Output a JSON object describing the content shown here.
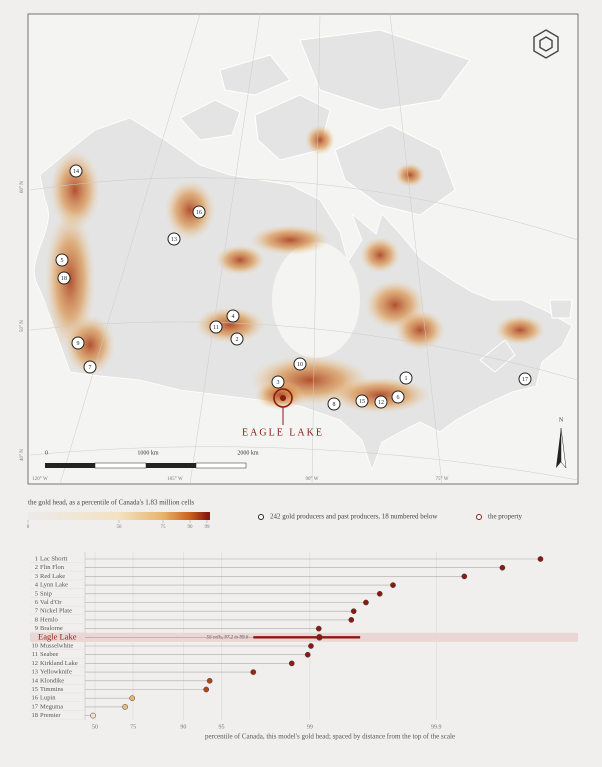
{
  "map": {
    "markers": [
      14,
      16,
      13,
      5,
      18,
      4,
      11,
      2,
      9,
      7,
      10,
      3,
      8,
      15,
      12,
      6,
      1,
      17
    ],
    "property_label": "EAGLE LAKE",
    "scale_labels": [
      "0",
      "1000 km",
      "2000 km"
    ],
    "north": "N",
    "lat_labels": [
      "60° N",
      "50° N",
      "40° N"
    ],
    "lon_labels": [
      "120° W",
      "105° W",
      "90° W",
      "75° W"
    ]
  },
  "legend": {
    "title": "the gold head, as a percentile of Canada's 1.83 million cells",
    "ticks": [
      0,
      50,
      75,
      90,
      99
    ],
    "colors": [
      "#ecebea",
      "#f3e2c2",
      "#e7b46c",
      "#c9621e",
      "#8a1a10"
    ],
    "producers": "242 gold producers and past producers, 18 numbered below",
    "property": "the property"
  },
  "chart_data": {
    "type": "dot",
    "ranks": [
      1,
      2,
      3,
      4,
      5,
      6,
      7,
      8,
      9,
      10,
      11,
      12,
      13,
      14,
      15,
      16,
      17,
      18
    ],
    "categories": [
      "Lac Shortt",
      "Flin Flon",
      "Red Lake",
      "Lynn Lake",
      "Snip",
      "Val d'Or",
      "Nickel Plate",
      "Hemlo",
      "Bralorne",
      "Musselwhite",
      "Seabee",
      "Kirkland Lake",
      "Yellowknife",
      "Klondike",
      "Timmins",
      "Lupin",
      "Meguma",
      "Premier"
    ],
    "values": [
      99.985,
      99.97,
      99.94,
      99.78,
      99.72,
      99.64,
      99.55,
      99.53,
      99.15,
      99.02,
      98.96,
      98.61,
      97.2,
      93.8,
      93.4,
      74.6,
      71.1,
      48.2
    ],
    "highlight": {
      "name": "Eagle Lake",
      "value": 99.16,
      "range": [
        97.2,
        99.6
      ],
      "label": "56 cells, 97.2 to 99.6"
    },
    "xlim": [
      40,
      99.992
    ],
    "xticks": [
      50,
      75,
      90,
      95,
      99,
      99.9
    ],
    "xlabel": "percentile of Canada, this model's gold head; spaced by distance from the top of the scale",
    "scale": "distance-from-top-log"
  }
}
